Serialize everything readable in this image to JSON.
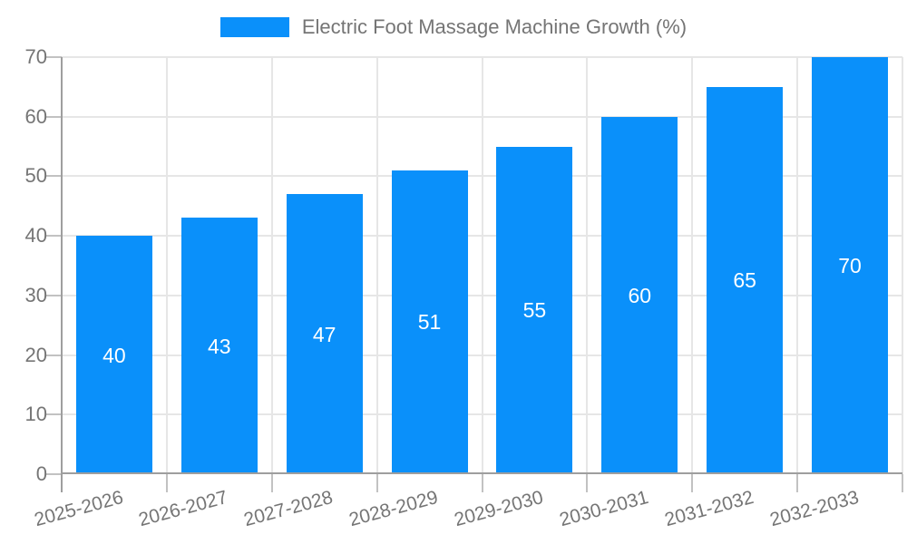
{
  "legend": {
    "label": "Electric Foot Massage Machine Growth (%)"
  },
  "chart_data": {
    "type": "bar",
    "title": "Electric Foot Massage Machine Growth (%)",
    "categories": [
      "2025-2026",
      "2026-2027",
      "2027-2028",
      "2028-2029",
      "2029-2030",
      "2030-2031",
      "2031-2032",
      "2032-2033"
    ],
    "values": [
      40,
      43,
      47,
      51,
      55,
      60,
      65,
      70
    ],
    "xlabel": "",
    "ylabel": "",
    "ylim": [
      0,
      70
    ],
    "yticks": [
      0,
      10,
      20,
      30,
      40,
      50,
      60,
      70
    ],
    "grid": true,
    "legend_position": "top-center",
    "x_label_rotation_deg": -15,
    "colors": {
      "bar": "#0a90fa",
      "bar_value_label": "#ffffff",
      "axis_line": "#9e9e9e",
      "gridline": "#e6e6e6",
      "tick": "#c2c2c2",
      "tick_label": "#757575",
      "background": "#ffffff"
    }
  }
}
